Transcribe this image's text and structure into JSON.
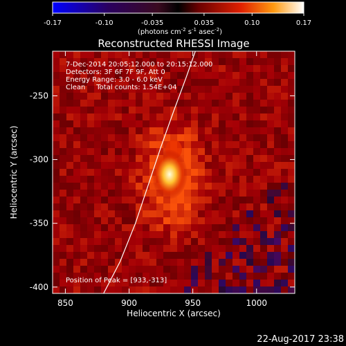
{
  "colorbar": {
    "ticks": [
      "-0.17",
      "-0.10",
      "-0.035",
      "0.035",
      "0.10",
      "0.17"
    ],
    "units_prefix": "(photons cm",
    "units_sup1": "-2",
    "units_mid": " s",
    "units_sup2": "-1",
    "units_mid2": " asec",
    "units_sup3": "-2",
    "units_suffix": ")",
    "range": [
      -0.17,
      0.17
    ]
  },
  "chart_data": {
    "type": "heatmap",
    "title": "Reconstructed RHESSI Image",
    "xlabel": "Heliocentric X (arcsec)",
    "ylabel": "Heliocentric Y (arcsec)",
    "xlim": [
      840,
      1030
    ],
    "ylim": [
      -405,
      -215
    ],
    "x_ticks": [
      "850",
      "900",
      "950",
      "1000"
    ],
    "x_tick_values": [
      850,
      900,
      950,
      1000
    ],
    "y_ticks": [
      "-250",
      "-300",
      "-350",
      "-400"
    ],
    "y_tick_values": [
      -250,
      -300,
      -350,
      -400
    ],
    "annotations": [
      "7-Dec-2014 20:05:12.000 to 20:15:12.000",
      "Detectors: 3F 6F 7F 9F, Att 0",
      "Energy Range: 3.0 - 6.0 keV",
      "Clean     Total counts: 1.54E+04"
    ],
    "peak_label": "Position of Peak = [933,-313]",
    "peak": [
      933,
      -313
    ],
    "limb_curve": [
      [
        880,
        -405
      ],
      [
        893,
        -380
      ],
      [
        905,
        -350
      ],
      [
        915,
        -320
      ],
      [
        925,
        -290
      ],
      [
        935,
        -262
      ],
      [
        945,
        -235
      ],
      [
        952,
        -215
      ]
    ]
  },
  "footer": {
    "timestamp": "22-Aug-2017 23:38"
  }
}
